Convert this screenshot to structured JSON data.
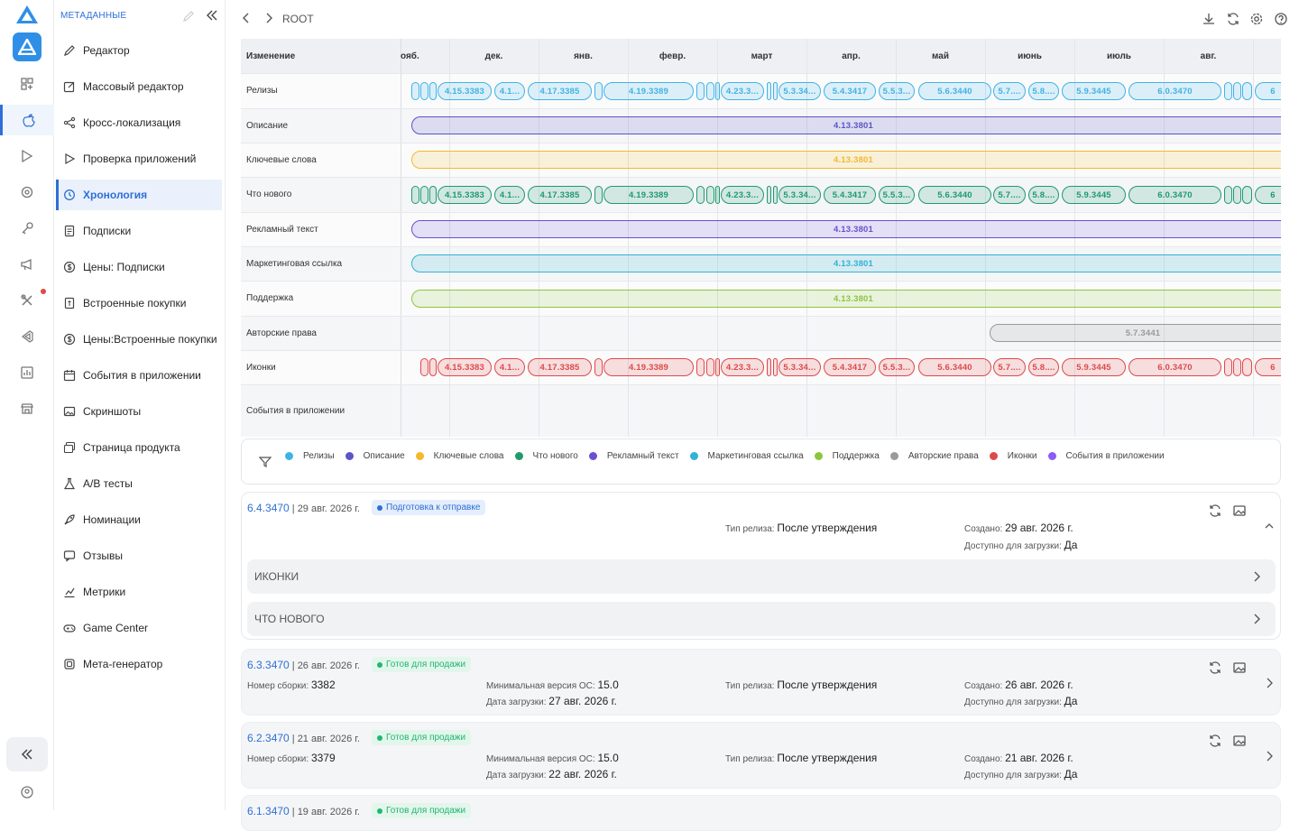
{
  "sidebar": {
    "title": "МЕТАДАННЫЕ",
    "items": [
      {
        "label": "Редактор",
        "icon": "pencil-icon"
      },
      {
        "label": "Массовый редактор",
        "icon": "edit-square-icon"
      },
      {
        "label": "Кросс-локализация",
        "icon": "share-icon"
      },
      {
        "label": "Проверка приложений",
        "icon": "play-outline-icon"
      },
      {
        "label": "Хронология",
        "icon": "history-icon",
        "active": true
      },
      {
        "label": "Подписки",
        "icon": "document-icon"
      },
      {
        "label": "Цены: Подписки",
        "icon": "dollar-circle-icon"
      },
      {
        "label": "Встроенные покупки",
        "icon": "receipt-icon"
      },
      {
        "label": "Цены:Встроенные покупки",
        "icon": "dollar-circle-icon"
      },
      {
        "label": "События в приложении",
        "icon": "calendar-icon"
      },
      {
        "label": "Скриншоты",
        "icon": "image-icon"
      },
      {
        "label": "Страница продукта",
        "icon": "images-icon"
      },
      {
        "label": "A/B тесты",
        "icon": "flask-icon"
      },
      {
        "label": "Номинации",
        "icon": "rocket-icon"
      },
      {
        "label": "Отзывы",
        "icon": "chat-icon"
      },
      {
        "label": "Метрики",
        "icon": "chart-icon"
      },
      {
        "label": "Game Center",
        "icon": "gamepad-icon"
      },
      {
        "label": "Мета-генератор",
        "icon": "layers-icon"
      }
    ]
  },
  "topbar": {
    "breadcrumb": "ROOT"
  },
  "timeline": {
    "header_label": "Изменение",
    "months": [
      "оябь.",
      "дек.",
      "янв.",
      "февр.",
      "март",
      "апр.",
      "май",
      "июнь",
      "июль",
      "авг."
    ],
    "month_display": [
      "ояб.",
      "дек.",
      "янв.",
      "февр.",
      "март",
      "апр.",
      "май",
      "июнь",
      "июль",
      "авг."
    ],
    "rows": [
      {
        "label": "Релизы",
        "color": "#3fb3e6",
        "type": "releases"
      },
      {
        "label": "Описание",
        "color": "#5b55c9",
        "type": "single",
        "version": "4.13.3801"
      },
      {
        "label": "Ключевые слова",
        "color": "#f3b92a",
        "type": "single",
        "version": "4.13.3801"
      },
      {
        "label": "Что нового",
        "color": "#1f9a6d",
        "type": "releases"
      },
      {
        "label": "Рекламный текст",
        "color": "#6c4fd1",
        "type": "single",
        "version": "4.13.3801"
      },
      {
        "label": "Маркетинговая ссылка",
        "color": "#2fb3d6",
        "type": "single",
        "version": "4.13.3801"
      },
      {
        "label": "Поддержка",
        "color": "#8cc63f",
        "type": "single",
        "version": "4.13.3801"
      },
      {
        "label": "Авторские права",
        "color": "#9a9a9a",
        "type": "late",
        "version": "5.7.3441"
      },
      {
        "label": "Иконки",
        "color": "#e04848",
        "type": "releases"
      },
      {
        "label": "События в приложении",
        "color": "#8b5cf6",
        "type": "empty"
      }
    ],
    "release_versions": [
      "4.15.3383",
      "4.1...",
      "4.17.3385",
      "4.19.3389",
      "4.23.3...",
      "5.3.34...",
      "5.4.3417",
      "5.5.3...",
      "5.6.3440",
      "5.7....",
      "5.8....",
      "5.9.3445",
      "6.0.3470",
      "6"
    ]
  },
  "legend": [
    {
      "label": "Релизы",
      "color": "#3fb3e6"
    },
    {
      "label": "Описание",
      "color": "#5b55c9"
    },
    {
      "label": "Ключевые слова",
      "color": "#f3b92a"
    },
    {
      "label": "Что нового",
      "color": "#1f9a6d"
    },
    {
      "label": "Рекламный текст",
      "color": "#6c4fd1"
    },
    {
      "label": "Маркетинговая ссылка",
      "color": "#2fb3d6"
    },
    {
      "label": "Поддержка",
      "color": "#8cc63f"
    },
    {
      "label": "Авторские права",
      "color": "#9a9a9a"
    },
    {
      "label": "Иконки",
      "color": "#e04848"
    },
    {
      "label": "События в приложении",
      "color": "#8b5cf6"
    }
  ],
  "releases": [
    {
      "version": "6.4.3470",
      "date": " | 29 авг. 2026 г.",
      "status": "Подготовка к отправке",
      "status_color": "#2f6fd6",
      "status_bg": "#e4eefc",
      "release_type_label": "Тип релиза:",
      "release_type": "После утверждения",
      "created_label": "Создано:",
      "created": "29 авг. 2026 г.",
      "download_label": "Доступно для загрузки:",
      "download": "Да",
      "sections": [
        "ИКОНКИ",
        "ЧТО НОВОГО"
      ]
    },
    {
      "version": "6.3.3470",
      "date": " | 26 авг. 2026 г.",
      "status": "Готов для продажи",
      "status_color": "#22b573",
      "status_bg": "#e3f6ec",
      "build_label": "Номер сборки:",
      "build": "3382",
      "min_os_label": "Минимальная версия ОС:",
      "min_os": "15.0",
      "upload_label": "Дата загрузки:",
      "upload": "27 авг. 2026 г.",
      "release_type_label": "Тип релиза:",
      "release_type": "После утверждения",
      "created_label": "Создано:",
      "created": "26 авг. 2026 г.",
      "download_label": "Доступно для загрузки:",
      "download": "Да"
    },
    {
      "version": "6.2.3470",
      "date": " | 21 авг. 2026 г.",
      "status": "Готов для продажи",
      "status_color": "#22b573",
      "status_bg": "#e3f6ec",
      "build_label": "Номер сборки:",
      "build": "3379",
      "min_os_label": "Минимальная версия ОС:",
      "min_os": "15.0",
      "upload_label": "Дата загрузки:",
      "upload": "22 авг. 2026 г.",
      "release_type_label": "Тип релиза:",
      "release_type": "После утверждения",
      "created_label": "Создано:",
      "created": "21 авг. 2026 г.",
      "download_label": "Доступно для загрузки:",
      "download": "Да"
    },
    {
      "version": "6.1.3470",
      "date": " | 19 авг. 2026 г.",
      "status": "Готов для продажи",
      "status_color": "#22b573",
      "status_bg": "#e3f6ec"
    }
  ]
}
